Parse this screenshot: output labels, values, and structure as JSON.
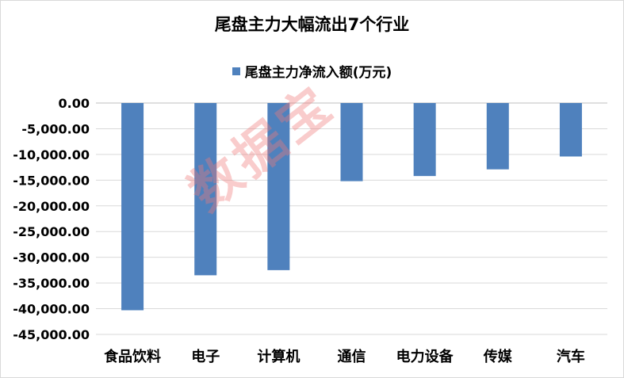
{
  "chart_data": {
    "type": "bar",
    "title": "尾盘主力大幅流出7个行业",
    "categories": [
      "食品饮料",
      "电子",
      "计算机",
      "通信",
      "电力设备",
      "传媒",
      "汽车"
    ],
    "series": [
      {
        "name": "尾盘主力净流入额(万元)",
        "values": [
          -40300,
          -33500,
          -32500,
          -15200,
          -14200,
          -12900,
          -10400
        ]
      }
    ],
    "ylim": [
      -45000,
      0
    ],
    "yticks": [
      0,
      -5000,
      -10000,
      -15000,
      -20000,
      -25000,
      -30000,
      -35000,
      -40000,
      -45000
    ],
    "ytick_labels": [
      "0.00",
      "-5,000.00",
      "-10,000.00",
      "-15,000.00",
      "-20,000.00",
      "-25,000.00",
      "-30,000.00",
      "-35,000.00",
      "-40,000.00",
      "-45,000.00"
    ],
    "legend_position": "top-center",
    "grid": true,
    "bar_color": "#4f81bd"
  },
  "watermark": "数据宝"
}
